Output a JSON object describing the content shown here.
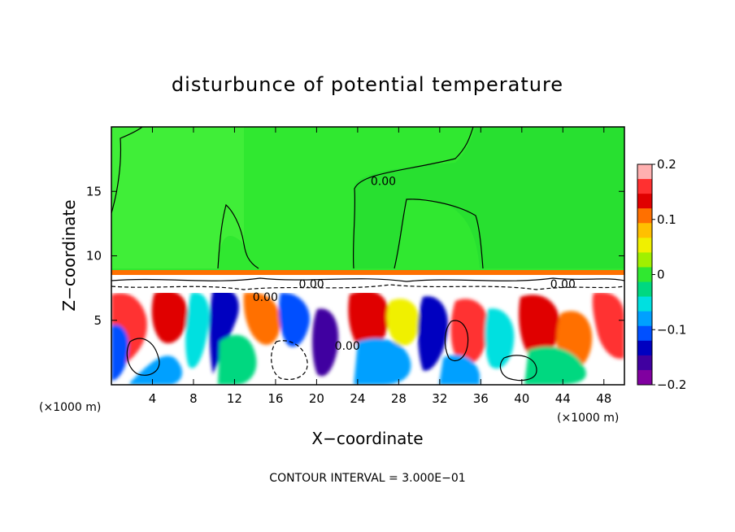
{
  "chart_data": {
    "type": "heatmap",
    "title": "disturbunce of potential temperature",
    "xlabel": "X−coordinate",
    "ylabel": "Z−coordinate",
    "x_unit_left": "(×1000 m)",
    "x_unit_right": "(×1000 m)",
    "xlim": [
      0,
      50
    ],
    "ylim": [
      0,
      20
    ],
    "x_ticks": [
      4,
      8,
      12,
      16,
      20,
      24,
      28,
      32,
      36,
      40,
      44,
      48
    ],
    "x_tick_labels": [
      "4",
      "8",
      "12",
      "16",
      "20",
      "24",
      "28",
      "32",
      "36",
      "40",
      "44",
      "48"
    ],
    "y_ticks": [
      5,
      10,
      15
    ],
    "y_tick_labels": [
      "5",
      "10",
      "15"
    ],
    "contour_labels": [
      {
        "text": "0.00",
        "x": 26.5,
        "y": 15.5
      },
      {
        "text": "0.00",
        "x": 19.5,
        "y": 7.5
      },
      {
        "text": "0.00",
        "x": 15.0,
        "y": 6.5
      },
      {
        "text": "0.00",
        "x": 44.0,
        "y": 7.5
      },
      {
        "text": "0.00",
        "x": 23.0,
        "y": 2.7
      }
    ],
    "contour_interval_text": "CONTOUR INTERVAL = 3.000E−01",
    "colorbar": {
      "range": [
        -0.2,
        0.2
      ],
      "tick_values": [
        0.2,
        0.1,
        0,
        -0.1,
        -0.2
      ],
      "tick_labels": [
        "0.2",
        "0.1",
        "0",
        "−0.1",
        "−0.2"
      ],
      "colors": [
        "#ffb0b0",
        "#ff3030",
        "#e00000",
        "#ff7000",
        "#ffc000",
        "#f0f000",
        "#a0f000",
        "#30e830",
        "#00d880",
        "#00e0e0",
        "#00a0ff",
        "#0050ff",
        "#0000c0",
        "#4000a0",
        "#8000a0"
      ]
    },
    "field_regions": {
      "upper_stable_layer_z": [
        8.5,
        20
      ],
      "mixed_layer_top_z": 8.5,
      "mixed_layer_band_z": [
        7.0,
        8.5
      ]
    }
  }
}
